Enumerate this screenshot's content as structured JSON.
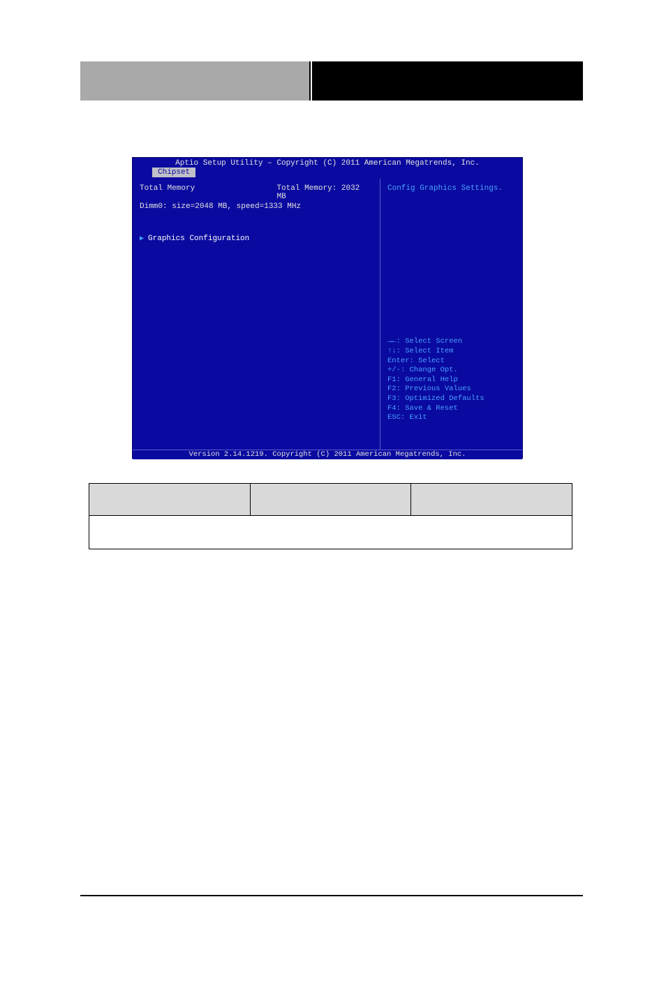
{
  "bios": {
    "title": "Aptio Setup Utility – Copyright (C) 2011 American Megatrends, Inc.",
    "tab": "Chipset",
    "main": {
      "total_memory_label": "Total Memory",
      "total_memory_value": "Total Memory: 2032 MB",
      "dimm_line": "Dimm0: size=2048 MB, speed=1333 MHz",
      "submenu": "Graphics Configuration"
    },
    "side": {
      "help": "Config Graphics Settings.",
      "hints": [
        "→←: Select Screen",
        "↑↓: Select Item",
        "Enter: Select",
        "+/-: Change Opt.",
        "F1: General Help",
        "F2: Previous Values",
        "F3: Optimized Defaults",
        "F4: Save & Reset",
        "ESC: Exit"
      ]
    },
    "footer": "Version 2.14.1219. Copyright (C) 2011 American Megatrends, Inc.",
    "colors": {
      "panel_bg": "#0a0aa0",
      "panel_fg": "#e0e0e0",
      "accent": "#4aa0ff",
      "tab_bg": "#c0c0c8",
      "tab_fg": "#0a0aa0"
    }
  },
  "table": {
    "columns": [
      "",
      "",
      ""
    ],
    "rows": [
      [
        "",
        "",
        ""
      ]
    ],
    "head_bg": "#d9d9d9",
    "border": "#000000"
  }
}
